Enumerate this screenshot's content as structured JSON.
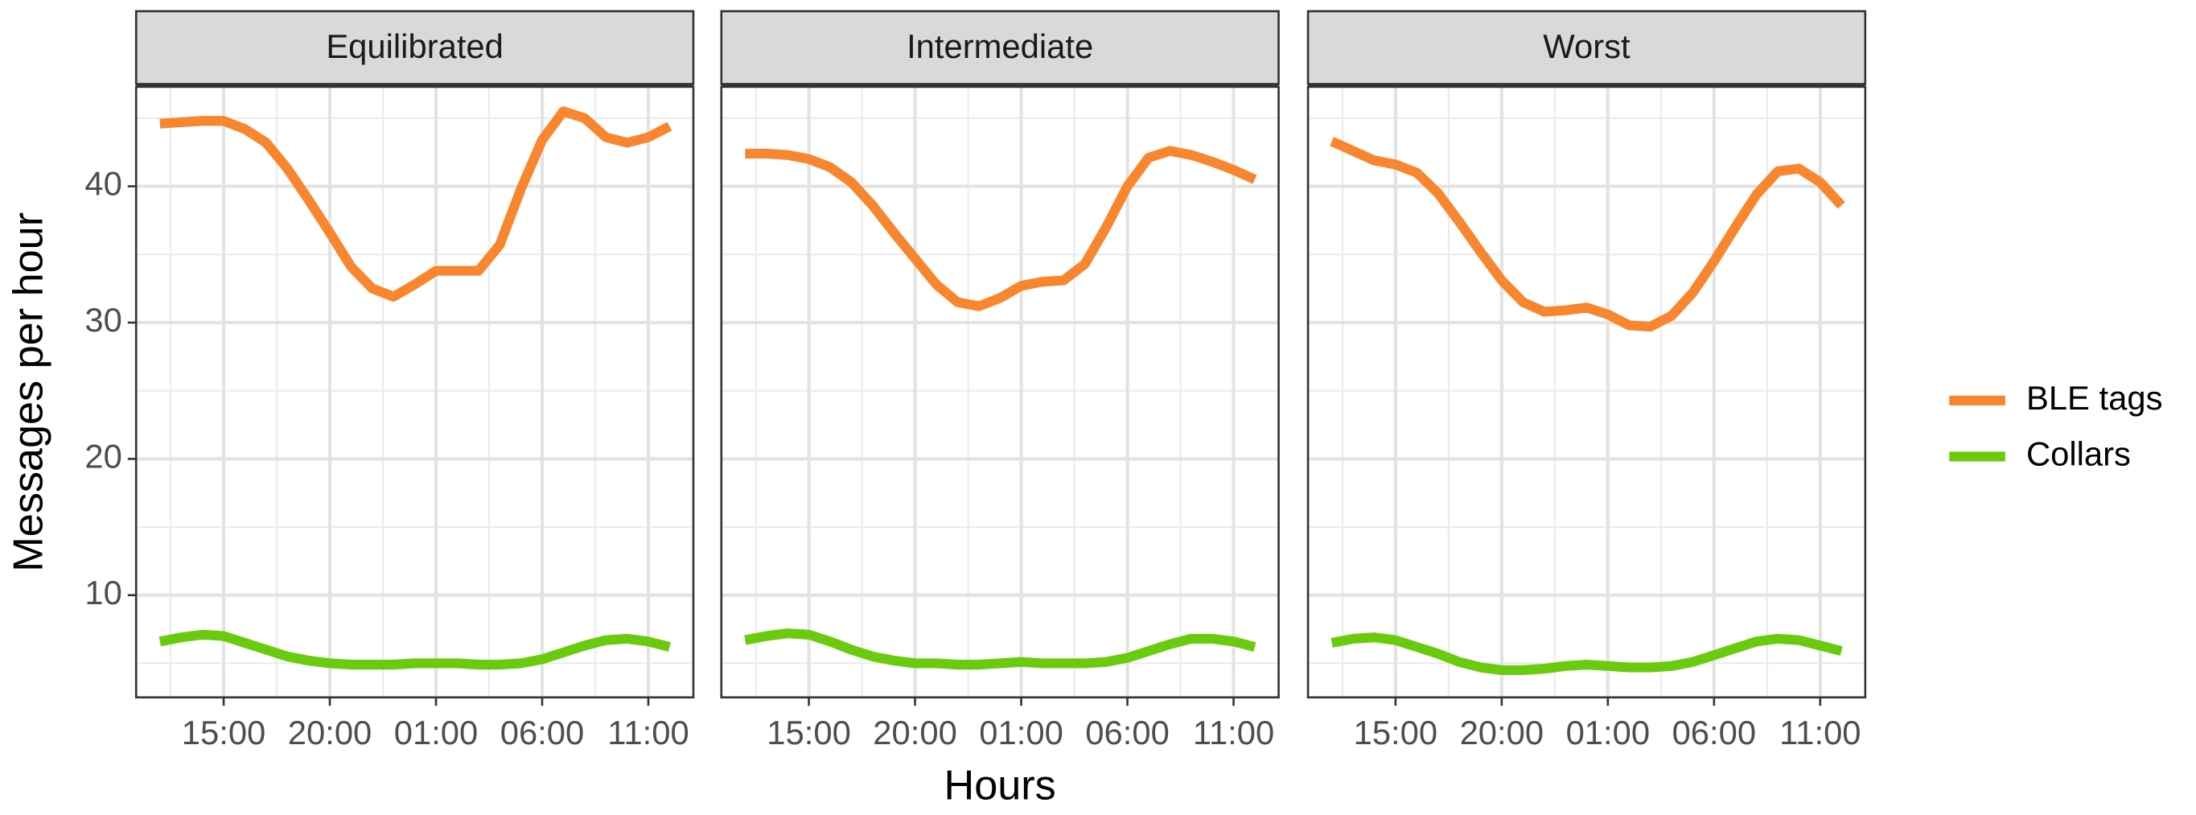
{
  "chart_data": {
    "type": "line",
    "xlabel": "Hours",
    "ylabel": "Messages per hour",
    "categories": [
      null,
      null,
      null,
      "15:00",
      null,
      null,
      null,
      null,
      "20:00",
      null,
      null,
      null,
      null,
      "01:00",
      null,
      null,
      null,
      null,
      "06:00",
      null,
      null,
      null,
      null,
      "11:00",
      null
    ],
    "ylim": [
      2.5,
      47.3
    ],
    "yticks": [
      10,
      20,
      30,
      40
    ],
    "grid": true,
    "legend": "right",
    "series": [
      {
        "name": "BLE tags",
        "color": "#f8862e"
      },
      {
        "name": "Collars",
        "color": "#6acb0e"
      }
    ],
    "facets": [
      {
        "title": "Equilibrated",
        "values": [
          [
            44.6,
            44.7,
            44.8,
            44.8,
            44.2,
            43.2,
            41.3,
            39.0,
            36.6,
            34.1,
            32.5,
            31.9,
            32.8,
            33.8,
            33.8,
            33.8,
            35.7,
            39.8,
            43.4,
            45.5,
            45.0,
            43.6,
            43.2,
            43.6,
            44.4
          ],
          [
            6.6,
            6.9,
            7.1,
            7.0,
            6.5,
            6.0,
            5.5,
            5.2,
            5.0,
            4.9,
            4.9,
            4.9,
            5.0,
            5.0,
            5.0,
            4.9,
            4.9,
            5.0,
            5.3,
            5.8,
            6.3,
            6.7,
            6.8,
            6.6,
            6.2
          ]
        ]
      },
      {
        "title": "Intermediate",
        "values": [
          [
            42.4,
            42.4,
            42.3,
            42.0,
            41.4,
            40.3,
            38.6,
            36.6,
            34.7,
            32.8,
            31.5,
            31.2,
            31.8,
            32.7,
            33.0,
            33.1,
            34.3,
            37.0,
            40.0,
            42.1,
            42.6,
            42.3,
            41.8,
            41.2,
            40.5
          ],
          [
            6.7,
            7.0,
            7.2,
            7.1,
            6.6,
            6.0,
            5.5,
            5.2,
            5.0,
            5.0,
            4.9,
            4.9,
            5.0,
            5.1,
            5.0,
            5.0,
            5.0,
            5.1,
            5.4,
            5.9,
            6.4,
            6.8,
            6.8,
            6.6,
            6.2
          ]
        ]
      },
      {
        "title": "Worst",
        "values": [
          [
            43.3,
            42.6,
            41.9,
            41.6,
            41.0,
            39.5,
            37.4,
            35.2,
            33.1,
            31.5,
            30.8,
            30.9,
            31.1,
            30.6,
            29.8,
            29.7,
            30.5,
            32.2,
            34.5,
            37.0,
            39.4,
            41.1,
            41.3,
            40.3,
            38.6
          ],
          [
            6.5,
            6.8,
            6.9,
            6.7,
            6.2,
            5.7,
            5.1,
            4.7,
            4.5,
            4.5,
            4.6,
            4.8,
            4.9,
            4.8,
            4.7,
            4.7,
            4.8,
            5.1,
            5.6,
            6.1,
            6.6,
            6.8,
            6.7,
            6.3,
            5.9
          ]
        ]
      }
    ]
  }
}
